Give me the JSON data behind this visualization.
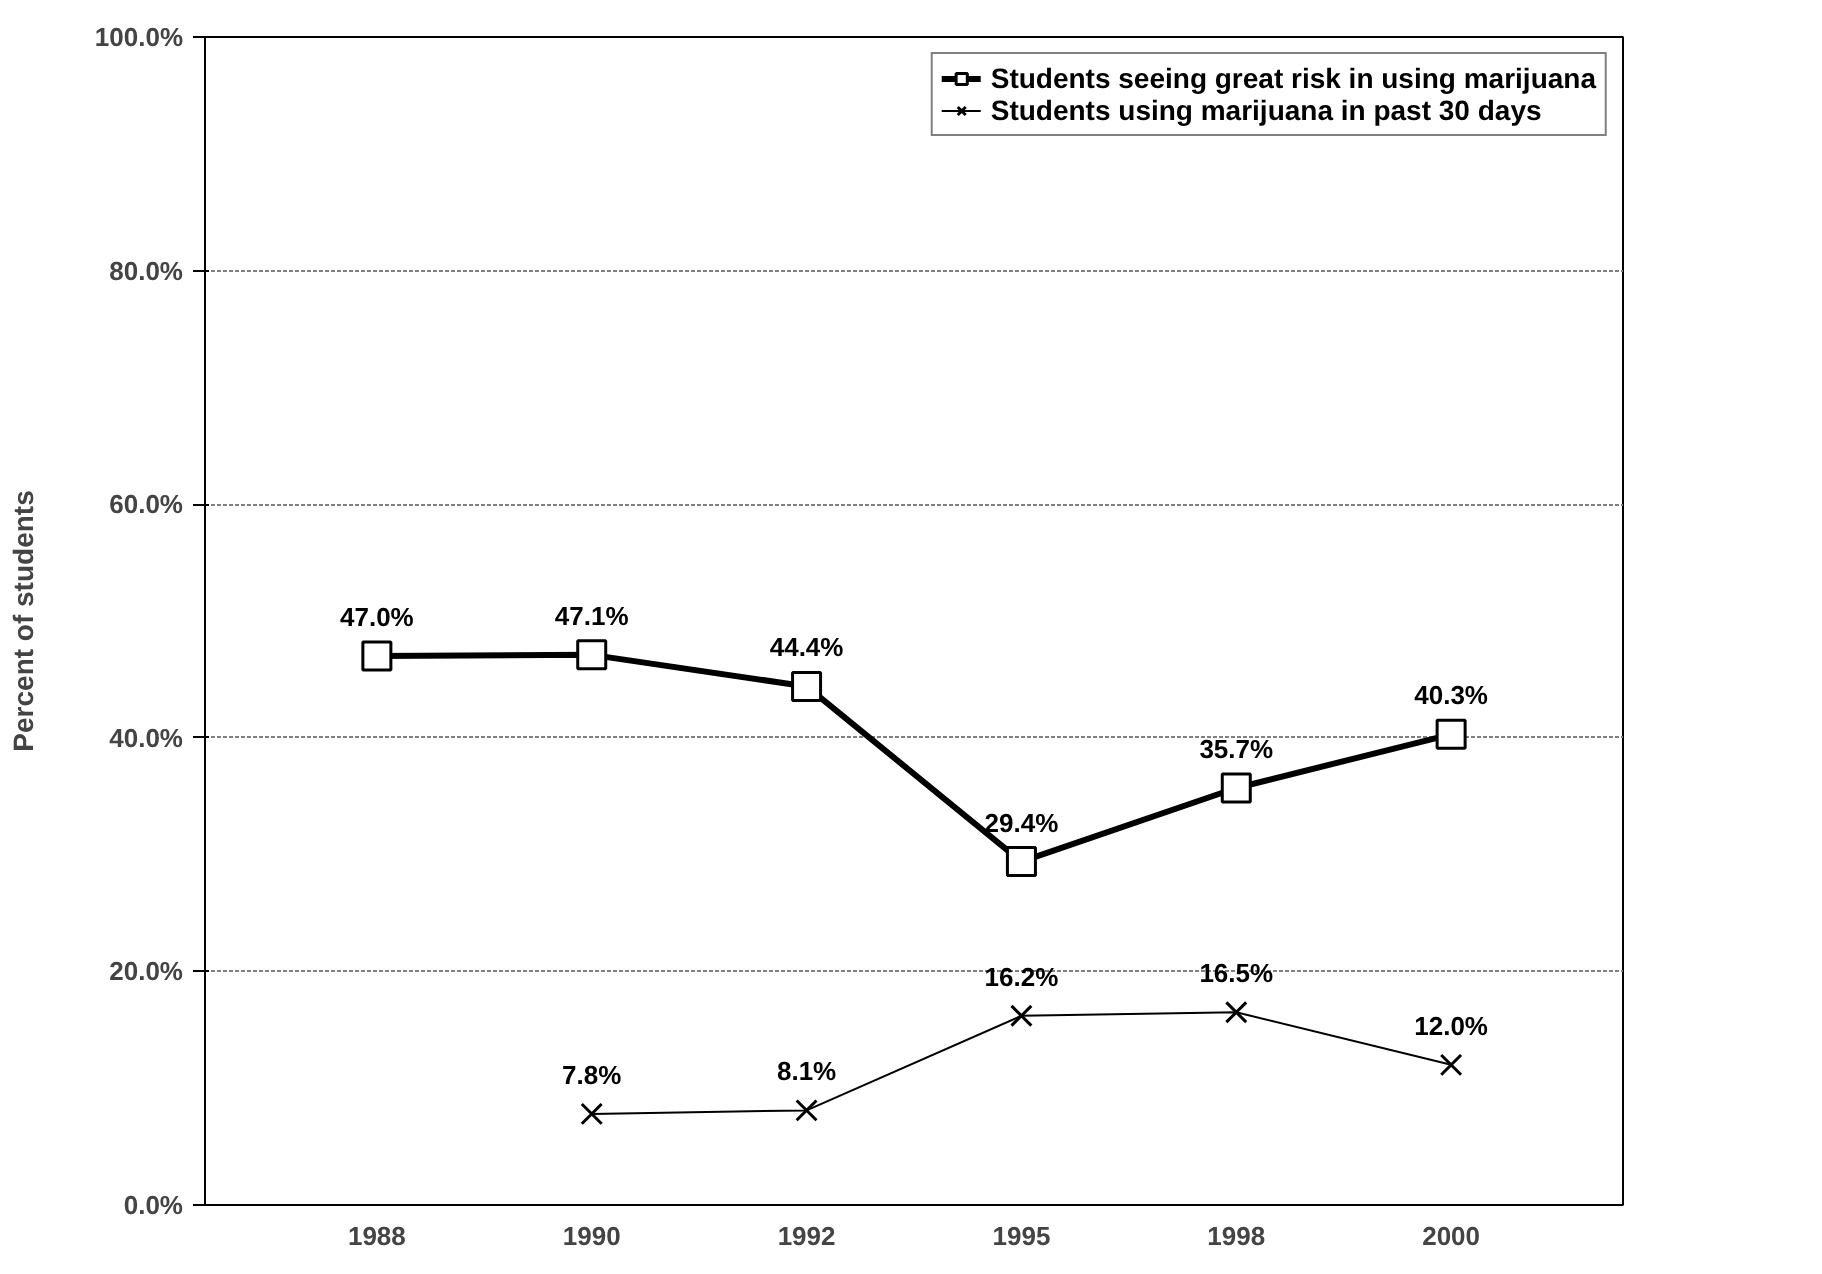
{
  "chart_data": {
    "type": "line",
    "ylabel": "Percent of students",
    "categories": [
      "1988",
      "1990",
      "1992",
      "1995",
      "1998",
      "2000"
    ],
    "series": [
      {
        "name": "Students seeing great risk in using marijuana",
        "color": "#000000",
        "marker": "square",
        "values": [
          47.0,
          47.1,
          44.4,
          29.4,
          35.7,
          40.3
        ],
        "value_labels": [
          "47.0%",
          "47.1%",
          "44.4%",
          "29.4%",
          "35.7%",
          "40.3%"
        ]
      },
      {
        "name": "Students using marijuana in past 30 days",
        "color": "#000000",
        "marker": "cross",
        "values": [
          null,
          7.8,
          8.1,
          16.2,
          16.5,
          12.0
        ],
        "value_labels": [
          null,
          "7.8%",
          "8.1%",
          "16.2%",
          "16.5%",
          "12.0%"
        ]
      }
    ],
    "ylim": [
      0,
      100
    ],
    "yticks": [
      {
        "value": 0,
        "label": "0.0%"
      },
      {
        "value": 20,
        "label": "20.0%"
      },
      {
        "value": 40,
        "label": "40.0%"
      },
      {
        "value": 60,
        "label": "60.0%"
      },
      {
        "value": 80,
        "label": "80.0%"
      },
      {
        "value": 100,
        "label": "100.0%"
      }
    ],
    "grid": "y",
    "legend": "top right",
    "line_style": "solid"
  }
}
